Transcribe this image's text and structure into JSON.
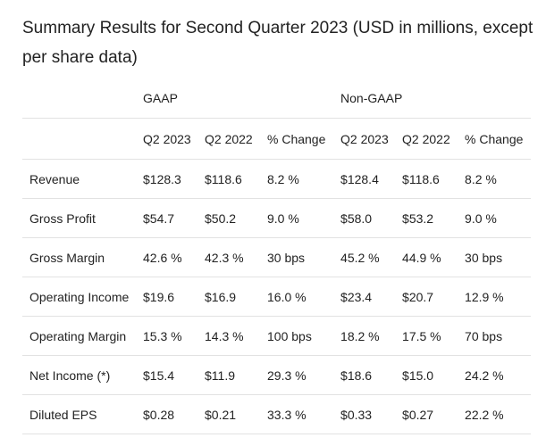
{
  "title": "Summary Results for Second Quarter 2023 (USD in millions, except per share data)",
  "groups": {
    "gaap": "GAAP",
    "non_gaap": "Non-GAAP"
  },
  "headers": [
    "Q2 2023",
    "Q2 2022",
    "% Change",
    "Q2 2023",
    "Q2 2022",
    "% Change"
  ],
  "rows": [
    {
      "label": "Revenue",
      "values": [
        "$128.3",
        "$118.6",
        "8.2 %",
        "$128.4",
        "$118.6",
        "8.2 %"
      ]
    },
    {
      "label": "Gross Profit",
      "values": [
        "$54.7",
        "$50.2",
        "9.0 %",
        "$58.0",
        "$53.2",
        "9.0 %"
      ]
    },
    {
      "label": "Gross Margin",
      "values": [
        "42.6 %",
        "42.3 %",
        "30 bps",
        "45.2 %",
        "44.9 %",
        "30 bps"
      ]
    },
    {
      "label": "Operating Income",
      "values": [
        "$19.6",
        "$16.9",
        "16.0 %",
        "$23.4",
        "$20.7",
        "12.9 %"
      ]
    },
    {
      "label": "Operating Margin",
      "values": [
        "15.3 %",
        "14.3 %",
        "100 bps",
        "18.2 %",
        "17.5 %",
        "70 bps"
      ]
    },
    {
      "label": "Net Income (*)",
      "values": [
        "$15.4",
        "$11.9",
        "29.3 %",
        "$18.6",
        "$15.0",
        "24.2 %"
      ]
    },
    {
      "label": "Diluted EPS",
      "values": [
        "$0.28",
        "$0.21",
        "33.3 %",
        "$0.33",
        "$0.27",
        "22.2 %"
      ]
    }
  ]
}
